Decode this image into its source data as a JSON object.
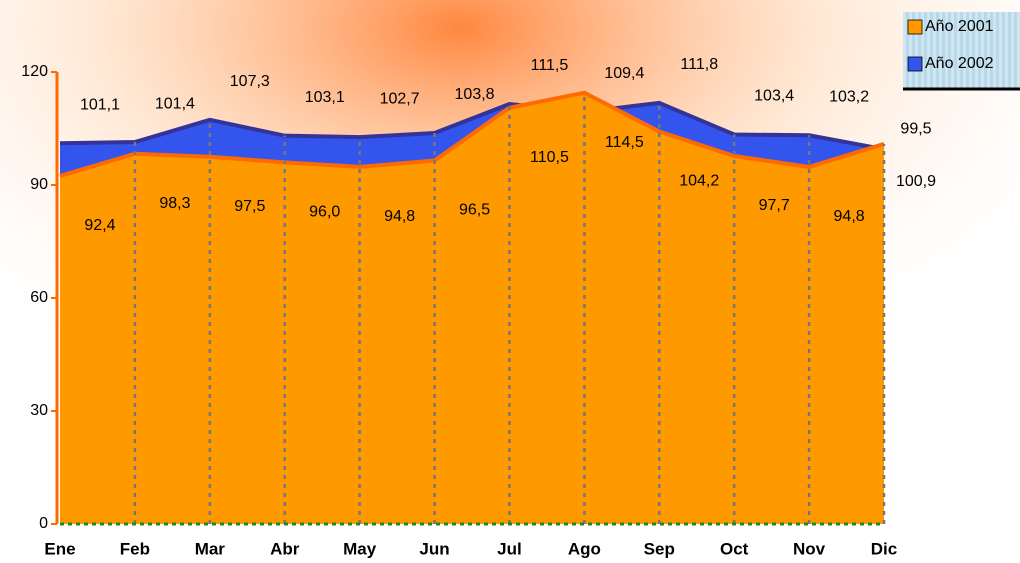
{
  "chart_data": {
    "type": "area",
    "categories": [
      "Ene",
      "Feb",
      "Mar",
      "Abr",
      "May",
      "Jun",
      "Jul",
      "Ago",
      "Sep",
      "Oct",
      "Nov",
      "Dic"
    ],
    "series": [
      {
        "name": "Año 2001",
        "color": "#ff9900",
        "values": [
          92.4,
          98.3,
          97.5,
          96.0,
          94.8,
          96.5,
          110.5,
          114.5,
          104.2,
          97.7,
          94.8,
          100.9
        ],
        "value_labels": [
          "92,4",
          "98,3",
          "97,5",
          "96,0",
          "94,8",
          "96,5",
          "110,5",
          "114,5",
          "104,2",
          "97,7",
          "94,8",
          "100,9"
        ]
      },
      {
        "name": "Año 2002",
        "color": "#3355ee",
        "values": [
          101.1,
          101.4,
          107.3,
          103.1,
          102.7,
          103.8,
          111.5,
          109.4,
          111.8,
          103.4,
          103.2,
          99.5
        ],
        "value_labels": [
          "101,1",
          "101,4",
          "107,3",
          "103,1",
          "102,7",
          "103,8",
          "111,5",
          "109,4",
          "111,8",
          "103,4",
          "103,2",
          "99,5"
        ]
      }
    ],
    "ylim": [
      0,
      120
    ],
    "yticks": [
      0,
      30,
      60,
      90,
      120
    ],
    "legend": "top-right"
  }
}
